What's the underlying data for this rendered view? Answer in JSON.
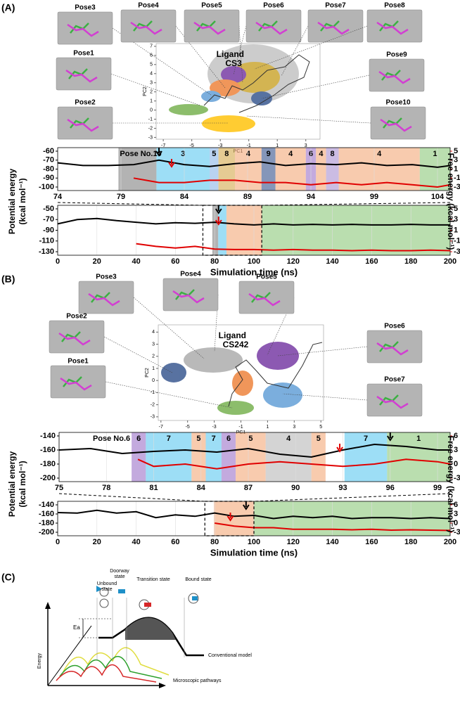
{
  "panel_a": {
    "label": "(A)",
    "poses": [
      {
        "label": "Pose3",
        "color": "#5b9bd5"
      },
      {
        "label": "Pose4",
        "color": "#ed7d31"
      },
      {
        "label": "Pose5",
        "color": "#2e75b6"
      },
      {
        "label": "Pose6",
        "color": "#7030a0"
      },
      {
        "label": "Pose7",
        "color": "#a6a6a6"
      },
      {
        "label": "Pose8",
        "color": "#bf9000"
      },
      {
        "label": "Pose1",
        "color": "#70ad47"
      },
      {
        "label": "Pose9",
        "color": "#1f3864"
      },
      {
        "label": "Pose2",
        "color": "#ffc000"
      },
      {
        "label": "Pose10",
        "color": "#7f7f7f"
      }
    ],
    "pca": {
      "title": [
        "Ligand",
        "CS3"
      ],
      "xlabel": "PC1",
      "ylabel": "PC2",
      "xlim": [
        -7.5,
        4
      ],
      "ylim": [
        -3.2,
        7.3
      ],
      "xticks": [
        -7,
        -5,
        -3,
        -1,
        1,
        3
      ],
      "yticks": [
        -3,
        -2,
        -1,
        0,
        1,
        2,
        3,
        4,
        5,
        6,
        7
      ]
    },
    "zoom": {
      "pose_no_label": "Pose No.10",
      "xlim": [
        74,
        105
      ],
      "ylim": [
        -100,
        -60
      ],
      "y2lim": [
        -3,
        5
      ],
      "xticks": [
        74,
        79,
        84,
        89,
        94,
        99,
        104
      ],
      "yticks": [
        -60,
        -70,
        -80,
        -90,
        -100
      ],
      "y2ticks": [
        5,
        3,
        1,
        -1,
        -3
      ],
      "segments": [
        {
          "start": 78.8,
          "end": 81.8,
          "color": "#808080"
        },
        {
          "label": "3",
          "start": 81.8,
          "end": 86,
          "color": "#5bc8f0"
        },
        {
          "label": "5",
          "start": 86,
          "end": 86.7,
          "color": "#8ab4e8"
        },
        {
          "label": "8",
          "start": 86.7,
          "end": 88,
          "color": "#d4a84b"
        },
        {
          "label": "4",
          "start": 88,
          "end": 90.1,
          "color": "#f4a878"
        },
        {
          "label": "9",
          "start": 90.1,
          "end": 91.2,
          "color": "#34508a"
        },
        {
          "label": "4",
          "start": 91.2,
          "end": 93.6,
          "color": "#f4a878"
        },
        {
          "label": "6",
          "start": 93.6,
          "end": 94.4,
          "color": "#9b72c8"
        },
        {
          "label": "4",
          "start": 94.4,
          "end": 95.2,
          "color": "#f4a878"
        },
        {
          "label": "8",
          "start": 95.2,
          "end": 96.2,
          "color": "#a98fd0"
        },
        {
          "label": "4",
          "start": 96.2,
          "end": 102.6,
          "color": "#f4a878"
        },
        {
          "label": "1",
          "start": 102.6,
          "end": 105,
          "color": "#8cc87a"
        }
      ],
      "potential": {
        "x": [
          74,
          76,
          78,
          80,
          82,
          84,
          86,
          88,
          90,
          92,
          94,
          96,
          98,
          100,
          102,
          104,
          105
        ],
        "values": [
          -73,
          -76,
          -76,
          -75,
          -70,
          -75,
          -77,
          -74,
          -72,
          -76,
          -74,
          -75,
          -73,
          -76,
          -75,
          -78,
          -76
        ]
      },
      "free": {
        "x": [
          80,
          82,
          84,
          86,
          88,
          90,
          92,
          94,
          96,
          98,
          100,
          102,
          104,
          105
        ],
        "values": [
          -1,
          -2,
          -2,
          -1.5,
          -1.5,
          -2,
          -2,
          -2.5,
          -2,
          -2.5,
          -2,
          -2.5,
          -3,
          -2.5
        ]
      },
      "markers": [
        {
          "x": 82,
          "color": "#000000"
        },
        {
          "x": 83,
          "color": "#e00000"
        }
      ]
    },
    "full": {
      "xlim": [
        0,
        200
      ],
      "ylim": [
        -130,
        -50
      ],
      "y2lim": [
        -3,
        5
      ],
      "xticks": [
        0,
        20,
        40,
        60,
        80,
        100,
        120,
        140,
        160,
        180,
        200
      ],
      "yticks": [
        -50,
        -70,
        -90,
        -110,
        -130
      ],
      "y2ticks": [
        5,
        3,
        1,
        -1,
        -3
      ],
      "xlabel": "Simulation time (ns)",
      "ylabel": [
        "Potential energy",
        "(kcal mol⁻¹)"
      ],
      "y2label": "Free energy (kcal mol⁻¹)",
      "zoom_range": [
        74,
        104
      ],
      "segments": [
        {
          "start": 78.8,
          "end": 81.8,
          "color": "#808080"
        },
        {
          "start": 81.8,
          "end": 86,
          "color": "#5bc8f0"
        },
        {
          "start": 86,
          "end": 104,
          "color": "#f4a878"
        },
        {
          "start": 104,
          "end": 200,
          "color": "#8cc87a"
        }
      ],
      "potential": {
        "x": [
          0,
          10,
          20,
          30,
          40,
          50,
          60,
          70,
          80,
          90,
          100,
          110,
          120,
          130,
          140,
          150,
          160,
          170,
          180,
          190,
          200
        ],
        "values": [
          -78,
          -70,
          -68,
          -72,
          -75,
          -78,
          -76,
          -77,
          -75,
          -78,
          -80,
          -78,
          -80,
          -79,
          -80,
          -79,
          -80,
          -80,
          -79,
          -80,
          -80
        ]
      },
      "free": {
        "x": [
          40,
          50,
          60,
          70,
          80,
          90,
          100,
          110,
          120,
          130,
          140,
          150,
          160,
          170,
          180,
          190,
          200
        ],
        "values": [
          -1.5,
          -2,
          -2.3,
          -2,
          -2.5,
          -2.6,
          -2.6,
          -2.7,
          -2.6,
          -2.7,
          -2.7,
          -2.8,
          -2.7,
          -2.8,
          -2.8,
          -2.7,
          -2.8
        ]
      },
      "markers": [
        {
          "x": 82,
          "color": "#000000"
        },
        {
          "x": 82,
          "color": "#e00000"
        }
      ]
    }
  },
  "panel_b": {
    "label": "(B)",
    "poses": [
      {
        "label": "Pose3",
        "color": "#bf9000"
      },
      {
        "label": "Pose4",
        "color": "#a6a6a6"
      },
      {
        "label": "Pose5",
        "color": "#ed7d31"
      },
      {
        "label": "Pose2",
        "color": "#1f4e79"
      },
      {
        "label": "Pose6",
        "color": "#7030a0"
      },
      {
        "label": "Pose1",
        "color": "#70ad47"
      },
      {
        "label": "Pose7",
        "color": "#00b0f0"
      }
    ],
    "pca": {
      "title": [
        "Ligand",
        "CS242"
      ],
      "xlabel": "PC1",
      "ylabel": "PC2",
      "xlim": [
        -7.2,
        5.2
      ],
      "ylim": [
        -3.3,
        4.6
      ],
      "xticks": [
        -7,
        -5,
        -3,
        -1,
        1,
        3,
        5
      ],
      "yticks": [
        -3,
        -2,
        -1,
        0,
        1,
        2,
        3,
        4
      ]
    },
    "zoom": {
      "pose_no_label": "Pose No.6",
      "xlim": [
        75,
        99.8
      ],
      "ylim": [
        -200,
        -140
      ],
      "y2lim": [
        -3,
        6
      ],
      "xticks": [
        75,
        78,
        81,
        84,
        87,
        90,
        93,
        96,
        99
      ],
      "yticks": [
        -140,
        -160,
        -180,
        -200
      ],
      "y2ticks": [
        6,
        3,
        0,
        -3
      ],
      "segments": [
        {
          "label": "6",
          "start": 79.6,
          "end": 80.5,
          "color": "#9b72c8"
        },
        {
          "label": "7",
          "start": 80.5,
          "end": 83.4,
          "color": "#5bc8f0"
        },
        {
          "label": "5",
          "start": 83.4,
          "end": 84.3,
          "color": "#f4a878"
        },
        {
          "label": "7",
          "start": 84.3,
          "end": 85.3,
          "color": "#5bc8f0"
        },
        {
          "label": "6",
          "start": 85.3,
          "end": 86.2,
          "color": "#9b72c8"
        },
        {
          "label": "5",
          "start": 86.2,
          "end": 88.1,
          "color": "#f4a878"
        },
        {
          "label": "4",
          "start": 88.1,
          "end": 91,
          "color": "#b8b8b8"
        },
        {
          "label": "5",
          "start": 91,
          "end": 91.9,
          "color": "#f4a878"
        },
        {
          "label": "7",
          "start": 93.1,
          "end": 95.8,
          "color": "#5bc8f0"
        },
        {
          "label": "1",
          "start": 95.8,
          "end": 99.8,
          "color": "#8cc87a"
        }
      ],
      "potential": {
        "x": [
          75,
          77,
          79,
          81,
          83,
          85,
          87,
          89,
          91,
          93,
          95,
          97,
          99,
          99.8
        ],
        "values": [
          -160,
          -158,
          -165,
          -162,
          -160,
          -163,
          -158,
          -166,
          -170,
          -160,
          -152,
          -155,
          -160,
          -160
        ]
      },
      "free": {
        "x": [
          80,
          81,
          83,
          85,
          87,
          89,
          91,
          93,
          95,
          97,
          99,
          99.8
        ],
        "values": [
          1,
          -0.5,
          0,
          -1,
          0,
          0.5,
          0,
          -0.5,
          0,
          1,
          0.5,
          0
        ]
      },
      "markers": [
        {
          "x": 96,
          "color": "#000000"
        },
        {
          "x": 92.8,
          "color": "#e00000"
        }
      ]
    },
    "full": {
      "xlim": [
        0,
        200
      ],
      "ylim": [
        -200,
        -140
      ],
      "y2lim": [
        -3,
        6
      ],
      "xticks": [
        0,
        20,
        40,
        60,
        80,
        100,
        120,
        140,
        160,
        180,
        200
      ],
      "yticks": [
        -140,
        -160,
        -180,
        -200
      ],
      "y2ticks": [
        6,
        3,
        0,
        -3
      ],
      "xlabel": "Simulation time (ns)",
      "ylabel": [
        "Potential energy",
        "(kcal mol⁻¹)"
      ],
      "y2label": "Free energy (kcal mol⁻¹)",
      "zoom_range": [
        75,
        100
      ],
      "segments": [
        {
          "start": 79.6,
          "end": 100,
          "color": "#f4a878"
        },
        {
          "start": 100,
          "end": 200,
          "color": "#8cc87a"
        }
      ],
      "potential": {
        "x": [
          0,
          10,
          20,
          30,
          40,
          50,
          60,
          70,
          80,
          90,
          100,
          110,
          120,
          130,
          140,
          150,
          160,
          170,
          180,
          190,
          200
        ],
        "values": [
          -157,
          -158,
          -152,
          -158,
          -155,
          -168,
          -162,
          -165,
          -158,
          -165,
          -163,
          -170,
          -165,
          -168,
          -165,
          -170,
          -168,
          -168,
          -170,
          -168,
          -170
        ]
      },
      "free": {
        "x": [
          80,
          90,
          100,
          110,
          120,
          130,
          140,
          150,
          160,
          170,
          180,
          190,
          200
        ],
        "values": [
          0,
          -1,
          -1.5,
          -1.5,
          -2,
          -2,
          -2,
          -2.2,
          -2,
          -2.3,
          -2.2,
          -2.3,
          -2.4
        ]
      },
      "markers": [
        {
          "x": 96,
          "color": "#000000"
        },
        {
          "x": 88,
          "color": "#e00000"
        }
      ]
    }
  },
  "panel_c": {
    "label": "(C)",
    "states": [
      [
        "Unbound",
        "state"
      ],
      [
        "Doorway",
        "state"
      ],
      [
        "Transition state"
      ],
      [
        "Bound state"
      ]
    ],
    "ea": "Ea",
    "energy_axis": "Energy",
    "conventional": "Conventional model",
    "microscopic": "Microscopic pathways"
  }
}
